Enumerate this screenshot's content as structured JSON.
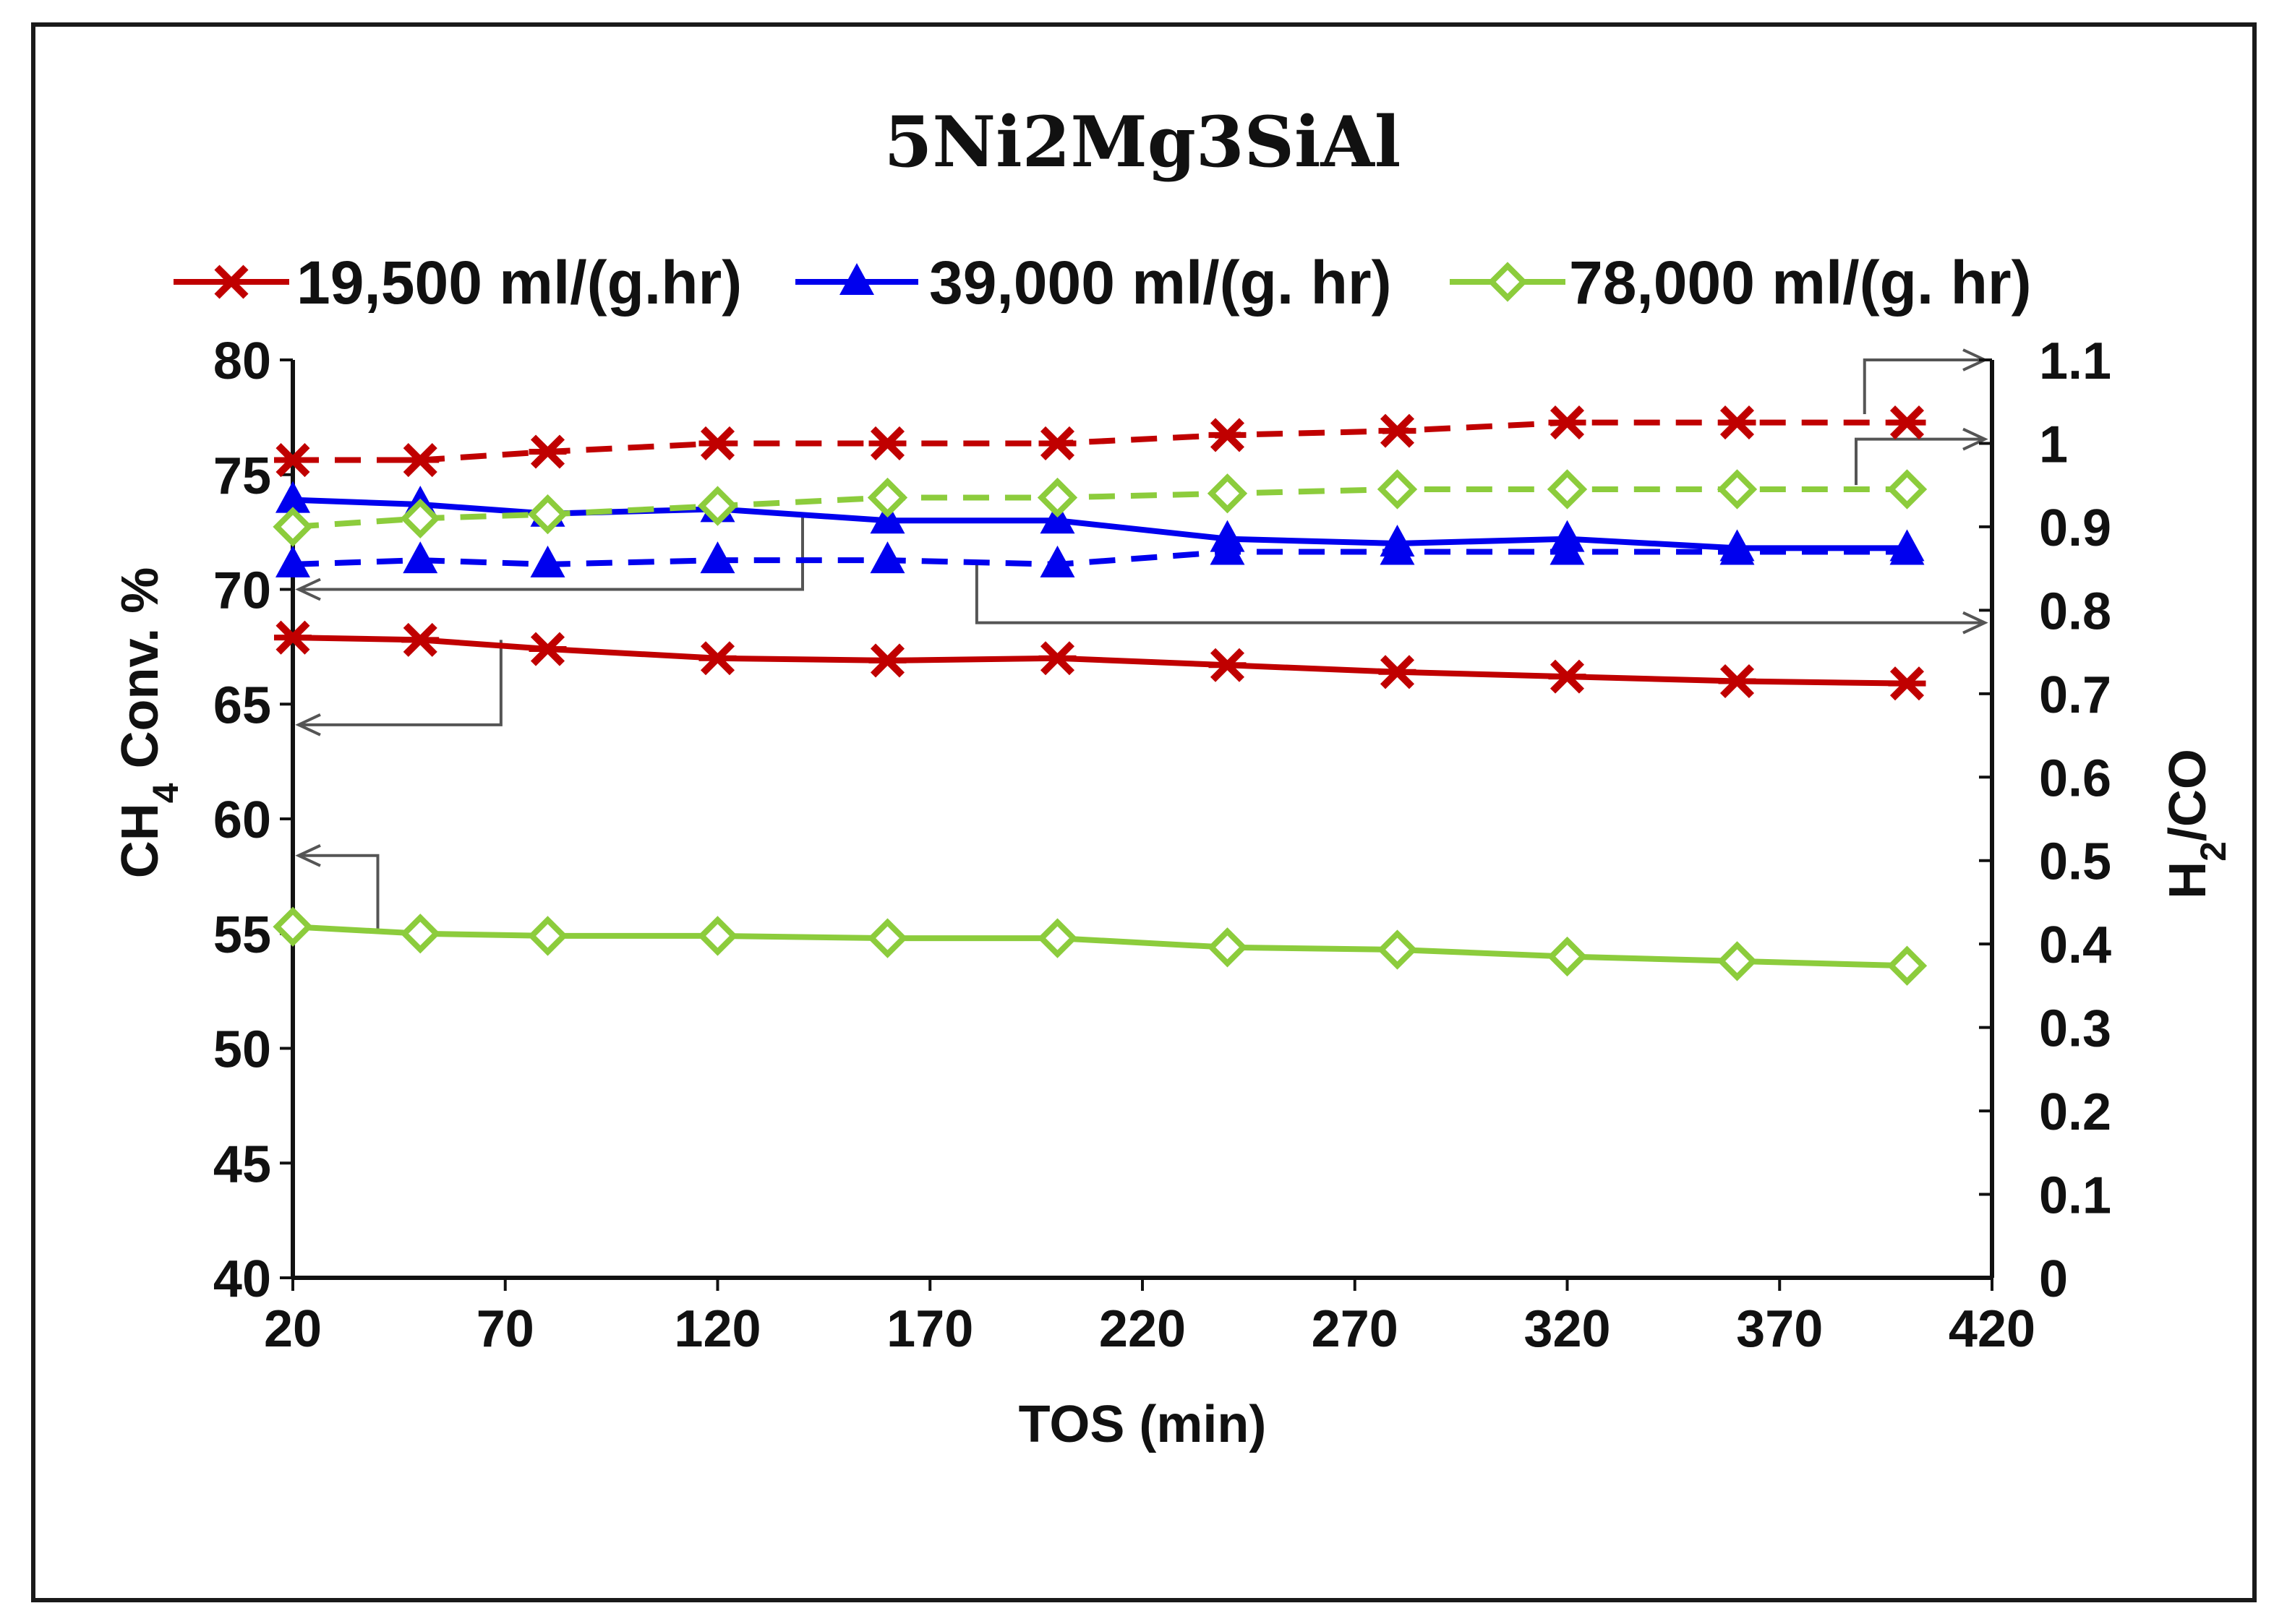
{
  "chart_data": {
    "type": "line",
    "title": "5Ni2Mg3SiAl",
    "xlabel": "TOS (min)",
    "ylabel_left": "CH4 Conv. %",
    "ylabel_right": "H2/CO",
    "xlim": [
      20,
      420
    ],
    "ylim_left": [
      40,
      80
    ],
    "ylim_right": [
      0,
      1.1
    ],
    "x_ticks": [
      20,
      70,
      120,
      170,
      220,
      270,
      320,
      370,
      420
    ],
    "y_left_ticks": [
      40,
      45,
      50,
      55,
      60,
      65,
      70,
      75,
      80
    ],
    "y_right_ticks": [
      "0",
      "0.1",
      "0.2",
      "0.3",
      "0.4",
      "0.5",
      "0.6",
      "0.7",
      "0.8",
      "0.9",
      "1",
      "1.1"
    ],
    "legend": [
      {
        "label": "19,500  ml/(g.hr)",
        "color": "#c00000",
        "marker": "star"
      },
      {
        "label": "39,000 ml/(g. hr)",
        "color": "#0000ee",
        "marker": "triangle"
      },
      {
        "label": "78,000 ml/(g. hr)",
        "color": "#8ccc3c",
        "marker": "diamond"
      }
    ],
    "series": [
      {
        "name": "19,500 ml/(g.hr) CH4 conversion",
        "axis": "left",
        "style": "solid",
        "color": "#c00000",
        "marker": "star",
        "x": [
          20,
          50,
          80,
          120,
          160,
          200,
          240,
          280,
          320,
          360,
          400
        ],
        "values": [
          67.9,
          67.8,
          67.4,
          67.0,
          66.9,
          67.0,
          66.7,
          66.4,
          66.2,
          66.0,
          65.9
        ]
      },
      {
        "name": "39,000 ml/(g.hr) CH4 conversion",
        "axis": "left",
        "style": "solid",
        "color": "#0000ee",
        "marker": "triangle",
        "x": [
          20,
          50,
          80,
          120,
          160,
          200,
          240,
          280,
          320,
          360,
          400
        ],
        "values": [
          73.9,
          73.7,
          73.3,
          73.5,
          73.0,
          73.0,
          72.2,
          72.0,
          72.2,
          71.8,
          71.8
        ]
      },
      {
        "name": "78,000 ml/(g.hr) CH4 conversion",
        "axis": "left",
        "style": "solid",
        "color": "#8ccc3c",
        "marker": "diamond",
        "x": [
          20,
          50,
          80,
          120,
          160,
          200,
          240,
          280,
          320,
          360,
          400
        ],
        "values": [
          55.3,
          55.0,
          54.9,
          54.9,
          54.8,
          54.8,
          54.4,
          54.3,
          54.0,
          53.8,
          53.6
        ]
      },
      {
        "name": "19,500 ml/(g.hr) H2/CO",
        "axis": "right",
        "style": "dashed",
        "color": "#c00000",
        "marker": "star",
        "x": [
          20,
          50,
          80,
          120,
          160,
          200,
          240,
          280,
          320,
          360,
          400
        ],
        "values": [
          0.98,
          0.98,
          0.99,
          1.0,
          1.0,
          1.0,
          1.01,
          1.015,
          1.025,
          1.025,
          1.025
        ]
      },
      {
        "name": "39,000 ml/(g.hr) H2/CO",
        "axis": "right",
        "style": "dashed",
        "color": "#0000ee",
        "marker": "triangle",
        "x": [
          20,
          50,
          80,
          120,
          160,
          200,
          240,
          280,
          320,
          360,
          400
        ],
        "values": [
          0.855,
          0.86,
          0.855,
          0.86,
          0.86,
          0.855,
          0.87,
          0.87,
          0.87,
          0.87,
          0.87
        ]
      },
      {
        "name": "78,000 ml/(g.hr) H2/CO",
        "axis": "right",
        "style": "dashed",
        "color": "#8ccc3c",
        "marker": "diamond",
        "x": [
          20,
          50,
          80,
          120,
          160,
          200,
          240,
          280,
          320,
          360,
          400
        ],
        "values": [
          0.9,
          0.91,
          0.915,
          0.925,
          0.935,
          0.935,
          0.94,
          0.945,
          0.945,
          0.945,
          0.945
        ]
      }
    ]
  }
}
